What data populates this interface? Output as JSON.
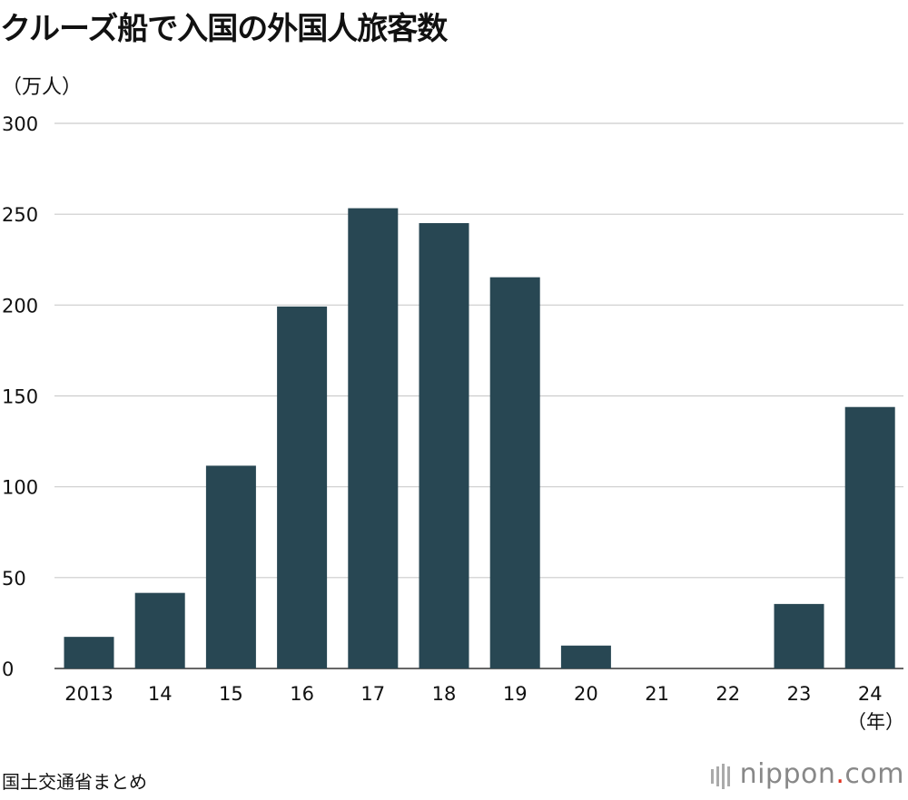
{
  "chart_data": {
    "type": "bar",
    "title": "クルーズ船で入国の外国人旅客数",
    "ylabel": "（万人）",
    "xlabel": "（年）",
    "categories": [
      "2013",
      "14",
      "15",
      "16",
      "17",
      "18",
      "19",
      "20",
      "21",
      "22",
      "23",
      "24"
    ],
    "values": [
      17.4,
      41.6,
      111.6,
      199.2,
      253.3,
      245.1,
      215.3,
      12.6,
      0,
      0,
      35.5,
      143.9
    ],
    "ylim": [
      0,
      300
    ],
    "yticks": [
      0,
      50,
      100,
      150,
      200,
      250,
      300
    ],
    "grid": true,
    "bar_color": "#284753",
    "grid_color": "#cccccc"
  },
  "footer": {
    "source": "国土交通省まとめ",
    "brand_name": "nippon",
    "brand_dot": ".",
    "brand_tld": "com"
  }
}
